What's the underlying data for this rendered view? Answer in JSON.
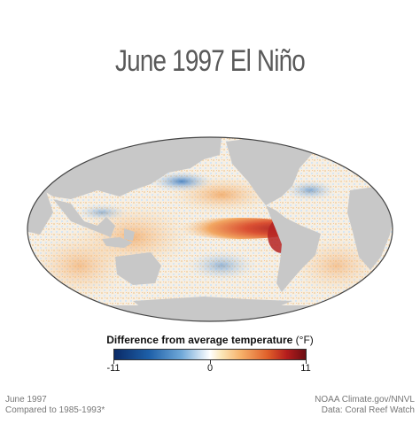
{
  "title": "June 1997 El Niño",
  "legend": {
    "label": "Difference from average temperature",
    "unit": "(°F)",
    "min_label": "-11",
    "mid_label": "0",
    "max_label": "11"
  },
  "footer": {
    "left_line1": "June 1997",
    "left_line2": "Compared to 1985-1993*",
    "right_line1": "NOAA Climate.gov/NNVL",
    "right_line2": "Data: Coral Reef Watch"
  },
  "colors": {
    "land": "#c8c8c8",
    "ocean_neutral": "#f4f1ea",
    "warm_strong": "#c0282a",
    "cool": "#5b8fca"
  }
}
